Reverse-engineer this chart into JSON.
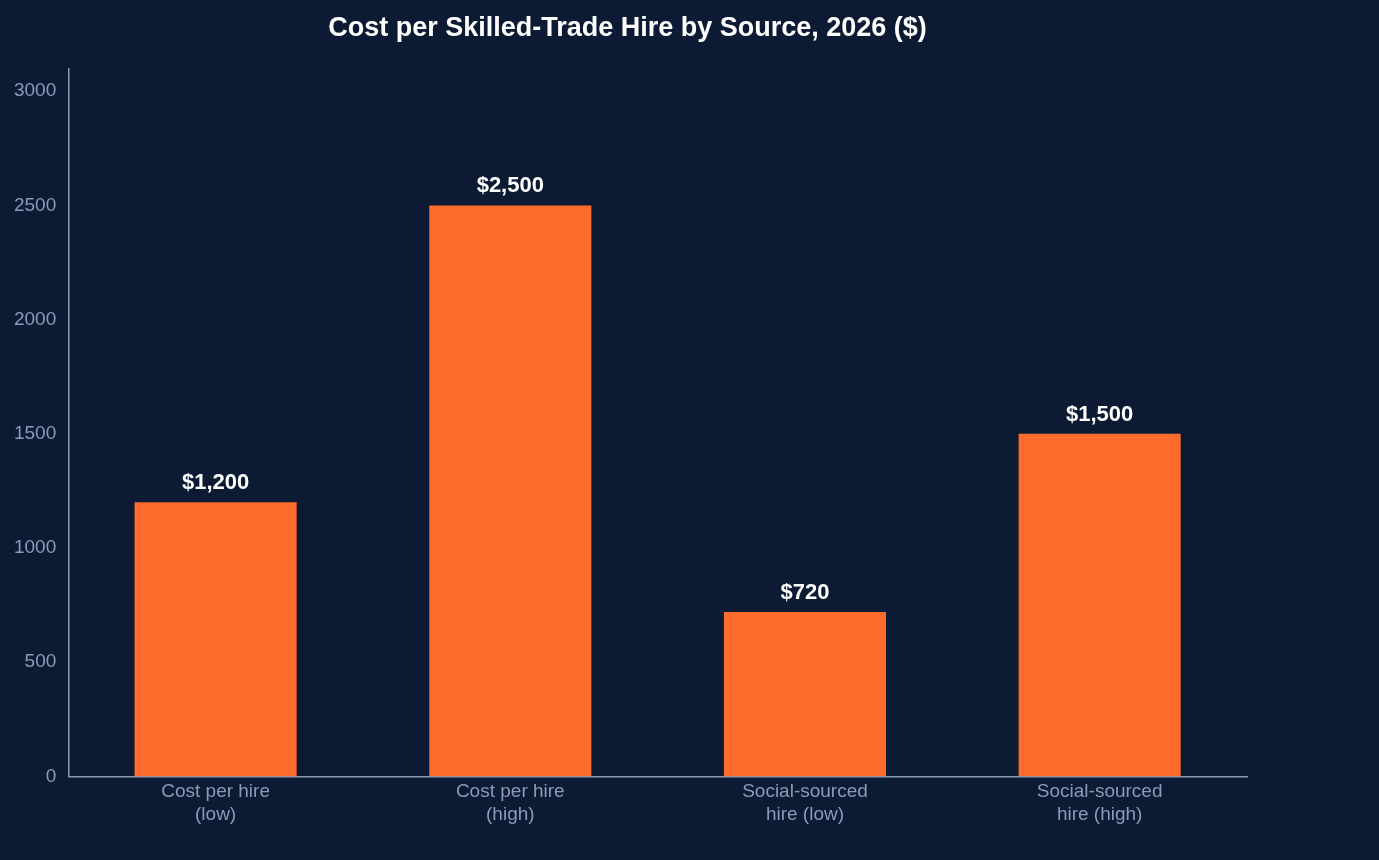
{
  "chart_data": {
    "type": "bar",
    "title": "Cost per Skilled-Trade Hire by Source, 2026 ($)",
    "categories": [
      "Cost per hire (low)",
      "Cost per hire (high)",
      "Social-sourced hire (low)",
      "Social-sourced hire (high)"
    ],
    "values": [
      1200,
      2500,
      720,
      1500
    ],
    "color": "#ff6b2c",
    "value_labels": [
      "$1,200",
      "$2,500",
      "$720",
      "$1,500"
    ],
    "ylim": [
      0,
      3100
    ],
    "yticks": [
      0,
      500,
      1000,
      1500,
      2000,
      2500,
      3000
    ],
    "grid": false,
    "legend": false
  }
}
